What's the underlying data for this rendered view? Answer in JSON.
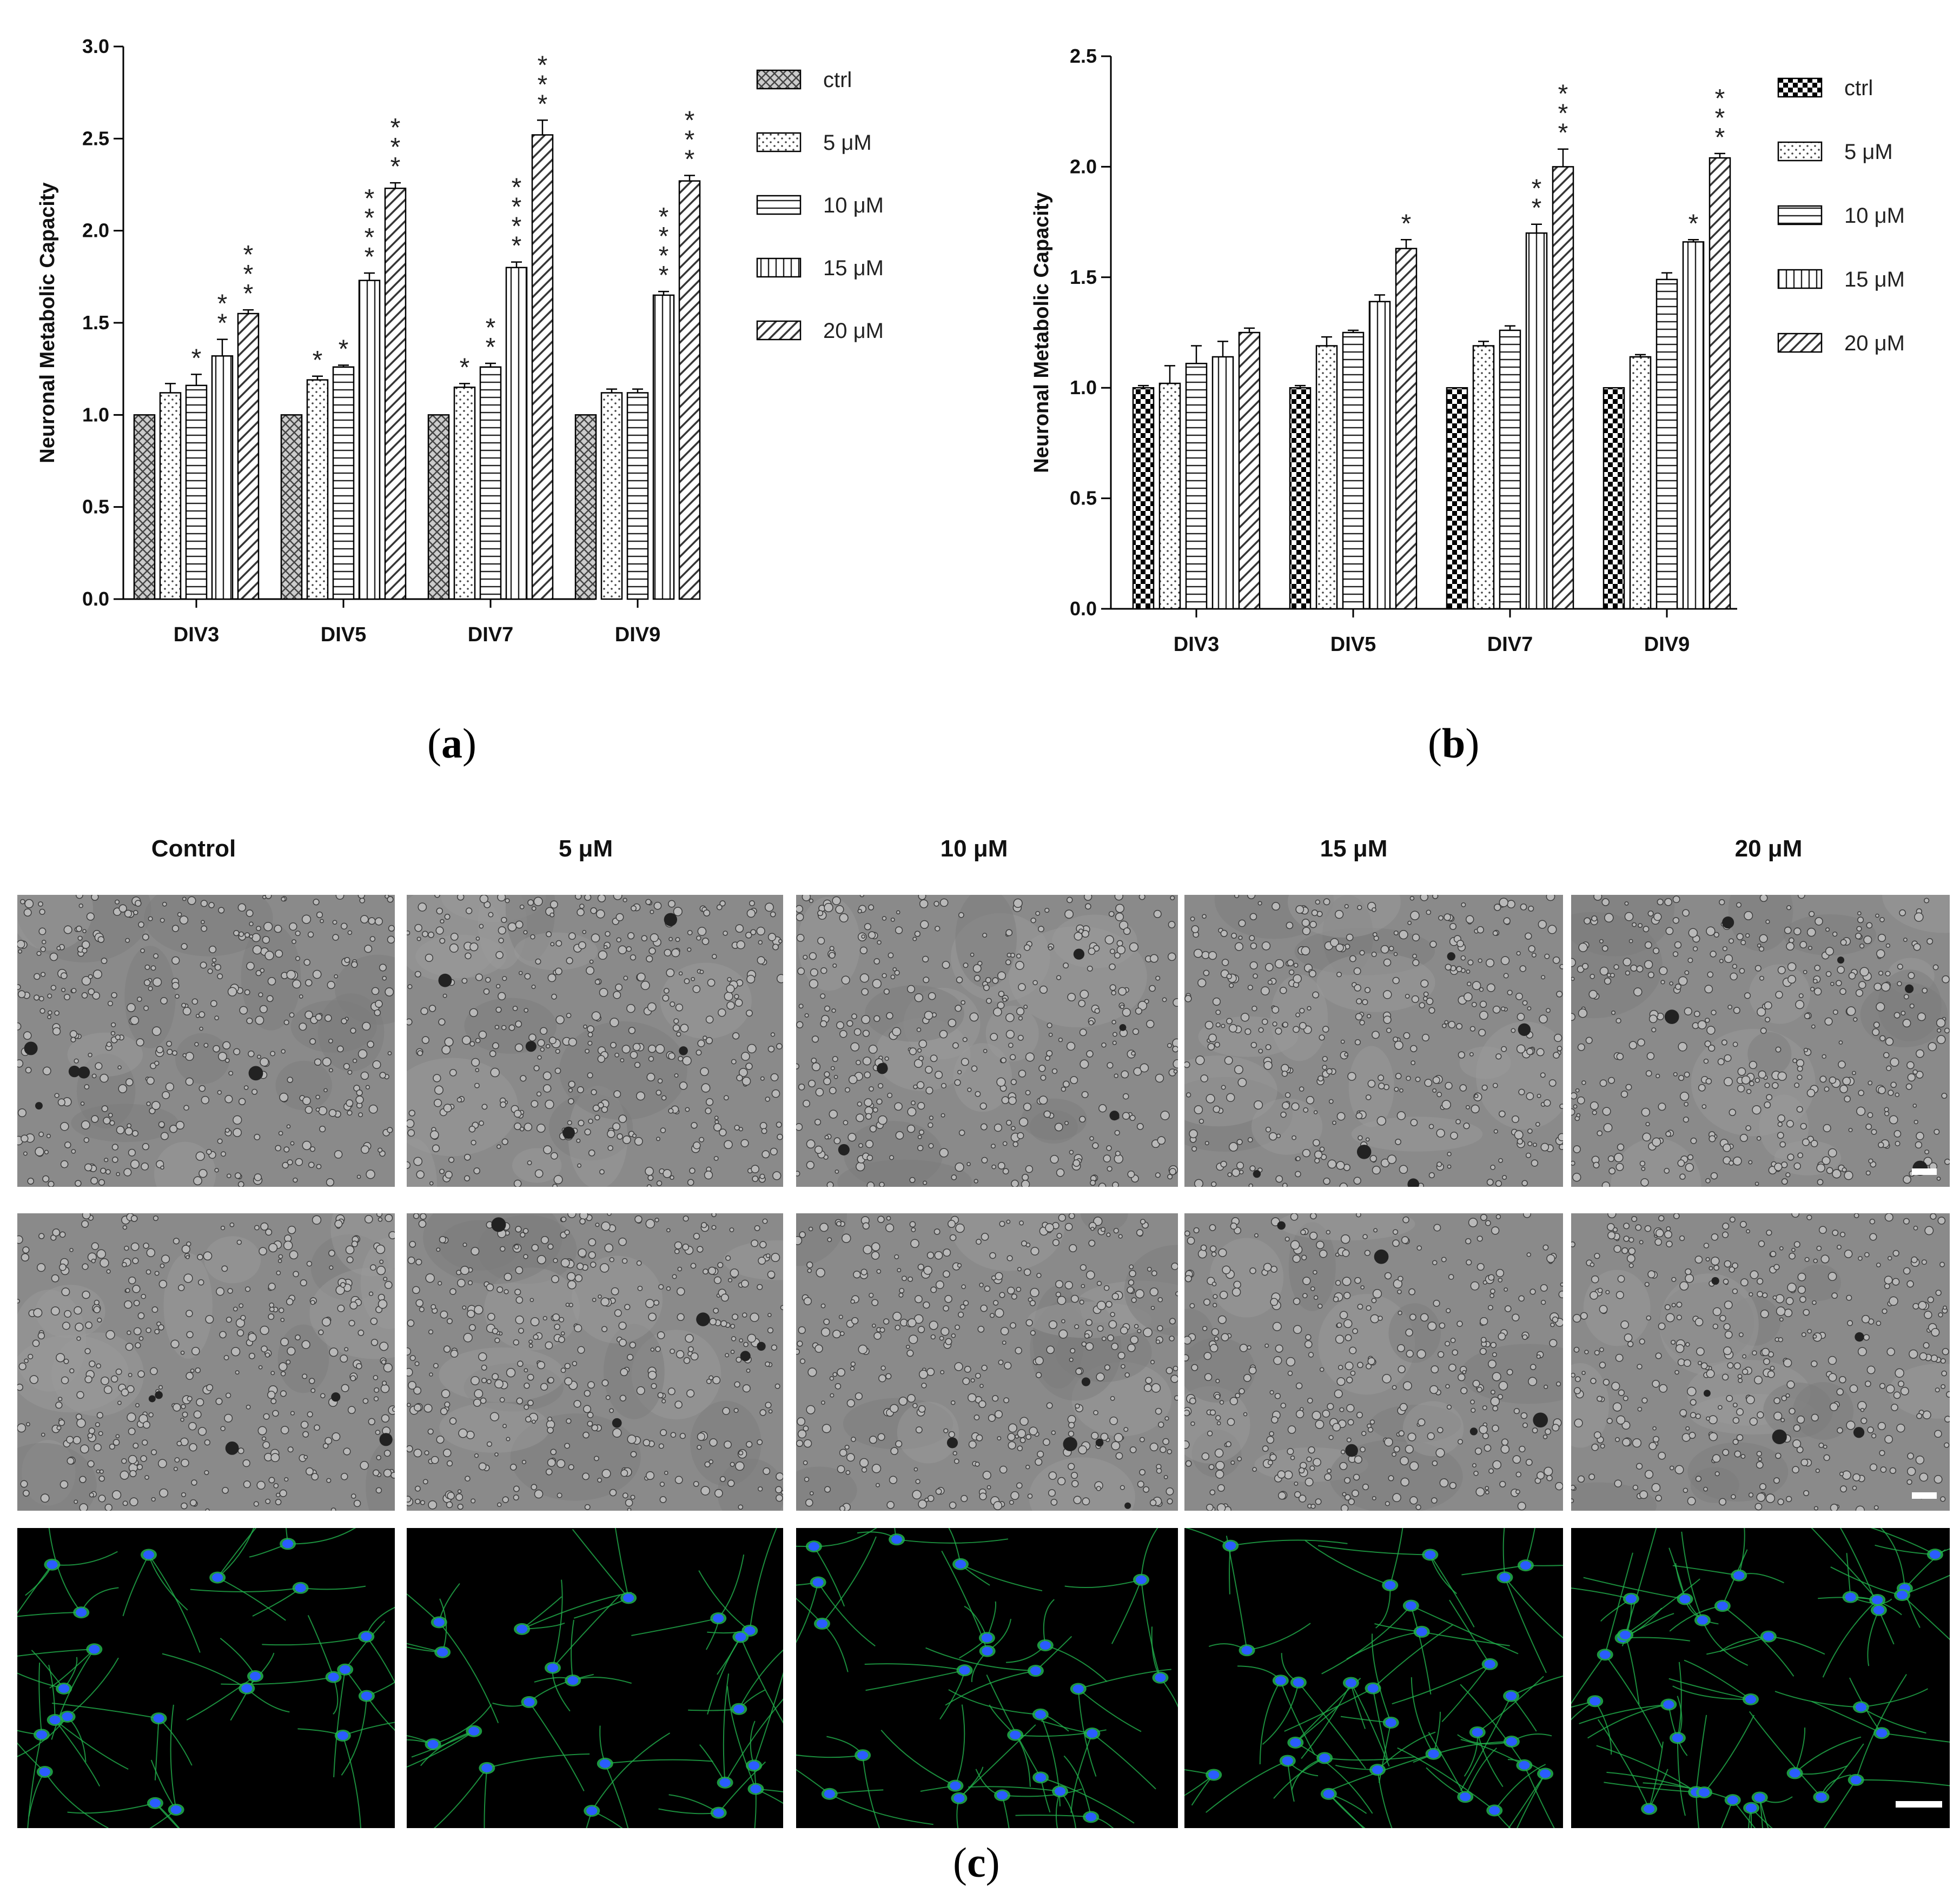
{
  "chart_data": [
    {
      "type": "bar",
      "panel": "a",
      "ylabel": "Neuronal Metabolic Capacity",
      "ylim": [
        0,
        3.0
      ],
      "yticks": [
        "0.0",
        "0.5",
        "1.0",
        "1.5",
        "2.0",
        "2.5",
        "3.0"
      ],
      "categories": [
        "DIV3",
        "DIV5",
        "DIV7",
        "DIV9"
      ],
      "legend_position": "right",
      "series": [
        {
          "name": "ctrl",
          "values": [
            1.0,
            1.0,
            1.0,
            1.0
          ],
          "errors": [
            0.0,
            0.0,
            0.0,
            0.0
          ],
          "significance": [
            "",
            "",
            "",
            ""
          ]
        },
        {
          "name": "5 μM",
          "values": [
            1.12,
            1.19,
            1.15,
            1.12
          ],
          "errors": [
            0.05,
            0.02,
            0.02,
            0.02
          ],
          "significance": [
            "",
            "*",
            "*",
            ""
          ]
        },
        {
          "name": "10 μM",
          "values": [
            1.16,
            1.26,
            1.26,
            1.12
          ],
          "errors": [
            0.06,
            0.01,
            0.02,
            0.02
          ],
          "significance": [
            "*",
            "*",
            "**",
            ""
          ]
        },
        {
          "name": "15 μM",
          "values": [
            1.32,
            1.73,
            1.8,
            1.65
          ],
          "errors": [
            0.09,
            0.04,
            0.03,
            0.02
          ],
          "significance": [
            "**",
            "****",
            "****",
            "****"
          ]
        },
        {
          "name": "20 μM",
          "values": [
            1.55,
            2.23,
            2.52,
            2.27
          ],
          "errors": [
            0.02,
            0.03,
            0.08,
            0.03
          ],
          "significance": [
            "***",
            "***",
            "***",
            "***"
          ]
        }
      ]
    },
    {
      "type": "bar",
      "panel": "b",
      "ylabel": "Neuronal Metabolic Capacity",
      "ylim": [
        0,
        2.5
      ],
      "yticks": [
        "0.0",
        "0.5",
        "1.0",
        "1.5",
        "2.0",
        "2.5"
      ],
      "categories": [
        "DIV3",
        "DIV5",
        "DIV7",
        "DIV9"
      ],
      "legend_position": "right",
      "series": [
        {
          "name": "ctrl",
          "values": [
            1.0,
            1.0,
            1.0,
            1.0
          ],
          "errors": [
            0.01,
            0.01,
            0.0,
            0.0
          ],
          "significance": [
            "",
            "",
            "",
            ""
          ]
        },
        {
          "name": "5 μM",
          "values": [
            1.02,
            1.19,
            1.19,
            1.14
          ],
          "errors": [
            0.08,
            0.04,
            0.02,
            0.01
          ],
          "significance": [
            "",
            "",
            "",
            ""
          ]
        },
        {
          "name": "10 μM",
          "values": [
            1.11,
            1.25,
            1.26,
            1.49
          ],
          "errors": [
            0.08,
            0.01,
            0.02,
            0.03
          ],
          "significance": [
            "",
            "",
            "",
            ""
          ]
        },
        {
          "name": "15 μM",
          "values": [
            1.14,
            1.39,
            1.7,
            1.66
          ],
          "errors": [
            0.07,
            0.03,
            0.04,
            0.01
          ],
          "significance": [
            "",
            "",
            "**",
            "*"
          ]
        },
        {
          "name": "20 μM",
          "values": [
            1.25,
            1.63,
            2.0,
            2.04
          ],
          "errors": [
            0.02,
            0.04,
            0.08,
            0.02
          ],
          "significance": [
            "",
            "*",
            "***",
            "***"
          ]
        }
      ]
    }
  ],
  "panel_labels": {
    "a": "a",
    "b": "b",
    "c": "c"
  },
  "micrographs": {
    "columns": [
      "Control",
      "5 μM",
      "10 μM",
      "15 μM",
      "20 μM"
    ],
    "rows": [
      "brightfield",
      "brightfield",
      "fluorescence"
    ],
    "colors": {
      "brightfield": "#8a8a8a",
      "fluorescence_bg": "#000000",
      "neurite": "#22b14c",
      "nucleus": "#2a5cff"
    }
  }
}
